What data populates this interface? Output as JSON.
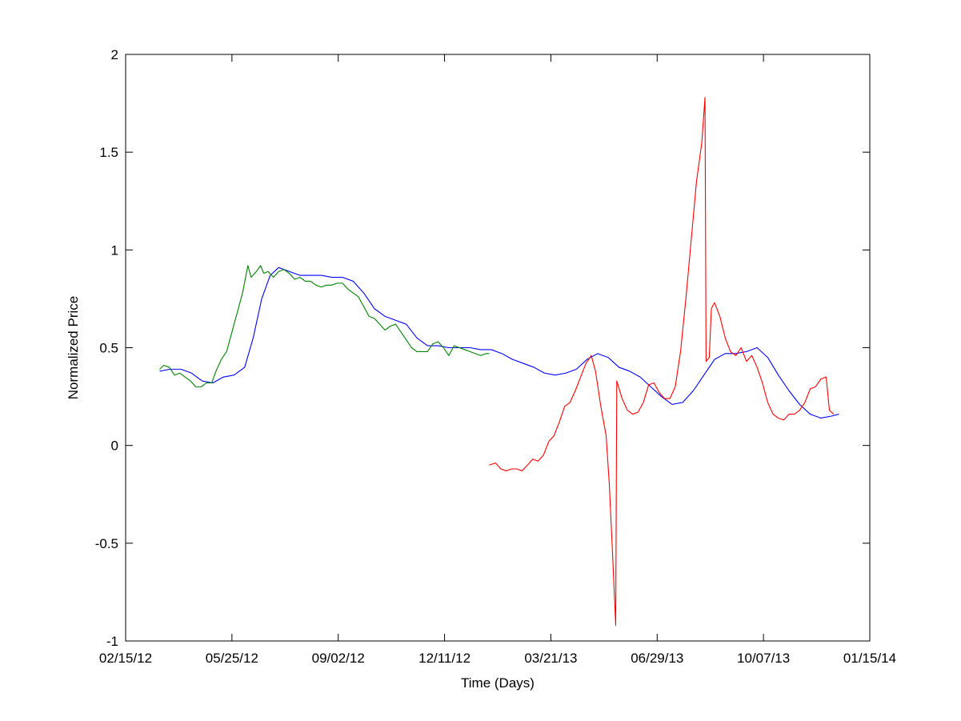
{
  "chart_data": {
    "type": "line",
    "title": "",
    "xlabel": "Time (Days)",
    "ylabel": "Normalized Price",
    "xlim": [
      "2012-02-15",
      "2014-01-15"
    ],
    "ylim": [
      -1,
      2
    ],
    "grid": false,
    "x_ticks": [
      {
        "date": "2012-02-15",
        "label": "02/15/12"
      },
      {
        "date": "2012-05-25",
        "label": "05/25/12"
      },
      {
        "date": "2012-09-02",
        "label": "09/02/12"
      },
      {
        "date": "2012-12-11",
        "label": "12/11/12"
      },
      {
        "date": "2013-03-21",
        "label": "03/21/13"
      },
      {
        "date": "2013-06-29",
        "label": "06/29/13"
      },
      {
        "date": "2013-10-07",
        "label": "10/07/13"
      },
      {
        "date": "2014-01-15",
        "label": "01/15/14"
      }
    ],
    "y_ticks": [
      {
        "value": -1,
        "label": "-1"
      },
      {
        "value": -0.5,
        "label": "-0.5"
      },
      {
        "value": 0,
        "label": "0"
      },
      {
        "value": 0.5,
        "label": "0.5"
      },
      {
        "value": 1,
        "label": "1"
      },
      {
        "value": 1.5,
        "label": "1.5"
      },
      {
        "value": 2,
        "label": "2"
      }
    ],
    "series": [
      {
        "color": "#0000ff",
        "points": [
          [
            "2012-03-18",
            0.38
          ],
          [
            "2012-03-28",
            0.39
          ],
          [
            "2012-04-07",
            0.39
          ],
          [
            "2012-04-17",
            0.37
          ],
          [
            "2012-04-27",
            0.33
          ],
          [
            "2012-05-07",
            0.32
          ],
          [
            "2012-05-17",
            0.35
          ],
          [
            "2012-05-27",
            0.36
          ],
          [
            "2012-06-06",
            0.4
          ],
          [
            "2012-06-14",
            0.55
          ],
          [
            "2012-06-22",
            0.75
          ],
          [
            "2012-06-30",
            0.87
          ],
          [
            "2012-07-08",
            0.91
          ],
          [
            "2012-07-18",
            0.89
          ],
          [
            "2012-07-28",
            0.87
          ],
          [
            "2012-08-07",
            0.87
          ],
          [
            "2012-08-17",
            0.87
          ],
          [
            "2012-08-27",
            0.86
          ],
          [
            "2012-09-06",
            0.86
          ],
          [
            "2012-09-16",
            0.84
          ],
          [
            "2012-09-26",
            0.78
          ],
          [
            "2012-10-06",
            0.7
          ],
          [
            "2012-10-16",
            0.66
          ],
          [
            "2012-10-26",
            0.64
          ],
          [
            "2012-11-05",
            0.62
          ],
          [
            "2012-11-15",
            0.55
          ],
          [
            "2012-11-25",
            0.51
          ],
          [
            "2012-12-05",
            0.51
          ],
          [
            "2012-12-15",
            0.5
          ],
          [
            "2012-12-25",
            0.5
          ],
          [
            "2013-01-04",
            0.5
          ],
          [
            "2013-01-14",
            0.49
          ],
          [
            "2013-01-24",
            0.49
          ],
          [
            "2013-02-03",
            0.47
          ],
          [
            "2013-02-13",
            0.44
          ],
          [
            "2013-02-23",
            0.42
          ],
          [
            "2013-03-05",
            0.4
          ],
          [
            "2013-03-15",
            0.37
          ],
          [
            "2013-03-25",
            0.36
          ],
          [
            "2013-04-04",
            0.37
          ],
          [
            "2013-04-14",
            0.39
          ],
          [
            "2013-04-24",
            0.44
          ],
          [
            "2013-05-04",
            0.47
          ],
          [
            "2013-05-14",
            0.45
          ],
          [
            "2013-05-24",
            0.4
          ],
          [
            "2013-06-03",
            0.38
          ],
          [
            "2013-06-13",
            0.35
          ],
          [
            "2013-06-23",
            0.3
          ],
          [
            "2013-07-03",
            0.25
          ],
          [
            "2013-07-13",
            0.21
          ],
          [
            "2013-07-23",
            0.22
          ],
          [
            "2013-08-02",
            0.28
          ],
          [
            "2013-08-12",
            0.36
          ],
          [
            "2013-08-22",
            0.44
          ],
          [
            "2013-09-01",
            0.47
          ],
          [
            "2013-09-11",
            0.47
          ],
          [
            "2013-09-21",
            0.48
          ],
          [
            "2013-10-01",
            0.5
          ],
          [
            "2013-10-11",
            0.45
          ],
          [
            "2013-10-21",
            0.36
          ],
          [
            "2013-10-31",
            0.28
          ],
          [
            "2013-11-10",
            0.21
          ],
          [
            "2013-11-20",
            0.16
          ],
          [
            "2013-11-30",
            0.14
          ],
          [
            "2013-12-10",
            0.15
          ],
          [
            "2013-12-17",
            0.16
          ]
        ]
      },
      {
        "color": "#008000",
        "points": [
          [
            "2012-03-18",
            0.39
          ],
          [
            "2012-03-22",
            0.41
          ],
          [
            "2012-03-27",
            0.4
          ],
          [
            "2012-04-01",
            0.36
          ],
          [
            "2012-04-06",
            0.37
          ],
          [
            "2012-04-11",
            0.35
          ],
          [
            "2012-04-16",
            0.33
          ],
          [
            "2012-04-21",
            0.3
          ],
          [
            "2012-04-26",
            0.3
          ],
          [
            "2012-05-01",
            0.32
          ],
          [
            "2012-05-06",
            0.32
          ],
          [
            "2012-05-10",
            0.38
          ],
          [
            "2012-05-15",
            0.44
          ],
          [
            "2012-05-20",
            0.48
          ],
          [
            "2012-05-25",
            0.58
          ],
          [
            "2012-05-30",
            0.68
          ],
          [
            "2012-06-04",
            0.78
          ],
          [
            "2012-06-09",
            0.92
          ],
          [
            "2012-06-12",
            0.86
          ],
          [
            "2012-06-17",
            0.89
          ],
          [
            "2012-06-21",
            0.92
          ],
          [
            "2012-06-24",
            0.88
          ],
          [
            "2012-06-28",
            0.89
          ],
          [
            "2012-07-03",
            0.86
          ],
          [
            "2012-07-08",
            0.89
          ],
          [
            "2012-07-13",
            0.9
          ],
          [
            "2012-07-18",
            0.88
          ],
          [
            "2012-07-23",
            0.85
          ],
          [
            "2012-07-28",
            0.86
          ],
          [
            "2012-08-02",
            0.84
          ],
          [
            "2012-08-07",
            0.84
          ],
          [
            "2012-08-12",
            0.82
          ],
          [
            "2012-08-17",
            0.81
          ],
          [
            "2012-08-22",
            0.82
          ],
          [
            "2012-08-27",
            0.82
          ],
          [
            "2012-09-01",
            0.83
          ],
          [
            "2012-09-06",
            0.83
          ],
          [
            "2012-09-11",
            0.8
          ],
          [
            "2012-09-16",
            0.78
          ],
          [
            "2012-09-21",
            0.76
          ],
          [
            "2012-09-26",
            0.71
          ],
          [
            "2012-10-01",
            0.66
          ],
          [
            "2012-10-06",
            0.65
          ],
          [
            "2012-10-11",
            0.62
          ],
          [
            "2012-10-16",
            0.59
          ],
          [
            "2012-10-21",
            0.61
          ],
          [
            "2012-10-26",
            0.62
          ],
          [
            "2012-10-31",
            0.58
          ],
          [
            "2012-11-05",
            0.54
          ],
          [
            "2012-11-10",
            0.5
          ],
          [
            "2012-11-15",
            0.48
          ],
          [
            "2012-11-20",
            0.48
          ],
          [
            "2012-11-25",
            0.48
          ],
          [
            "2012-11-30",
            0.52
          ],
          [
            "2012-12-05",
            0.53
          ],
          [
            "2012-12-10",
            0.5
          ],
          [
            "2012-12-15",
            0.46
          ],
          [
            "2012-12-20",
            0.51
          ],
          [
            "2012-12-25",
            0.5
          ],
          [
            "2012-12-30",
            0.49
          ],
          [
            "2013-01-04",
            0.48
          ],
          [
            "2013-01-09",
            0.47
          ],
          [
            "2013-01-14",
            0.46
          ],
          [
            "2013-01-19",
            0.47
          ],
          [
            "2013-01-22",
            0.47
          ]
        ]
      },
      {
        "color": "#ff0000",
        "points": [
          [
            "2013-01-22",
            -0.1
          ],
          [
            "2013-01-28",
            -0.09
          ],
          [
            "2013-02-02",
            -0.12
          ],
          [
            "2013-02-07",
            -0.13
          ],
          [
            "2013-02-12",
            -0.12
          ],
          [
            "2013-02-17",
            -0.12
          ],
          [
            "2013-02-22",
            -0.13
          ],
          [
            "2013-02-27",
            -0.1
          ],
          [
            "2013-03-04",
            -0.07
          ],
          [
            "2013-03-09",
            -0.08
          ],
          [
            "2013-03-14",
            -0.05
          ],
          [
            "2013-03-19",
            0.02
          ],
          [
            "2013-03-24",
            0.05
          ],
          [
            "2013-03-29",
            0.12
          ],
          [
            "2013-04-03",
            0.2
          ],
          [
            "2013-04-08",
            0.22
          ],
          [
            "2013-04-13",
            0.28
          ],
          [
            "2013-04-18",
            0.35
          ],
          [
            "2013-04-23",
            0.42
          ],
          [
            "2013-04-28",
            0.46
          ],
          [
            "2013-05-02",
            0.38
          ],
          [
            "2013-05-07",
            0.2
          ],
          [
            "2013-05-12",
            0.05
          ],
          [
            "2013-05-15",
            -0.2
          ],
          [
            "2013-05-18",
            -0.55
          ],
          [
            "2013-05-21",
            -0.92
          ],
          [
            "2013-05-22",
            0.33
          ],
          [
            "2013-05-27",
            0.24
          ],
          [
            "2013-06-01",
            0.18
          ],
          [
            "2013-06-06",
            0.16
          ],
          [
            "2013-06-11",
            0.17
          ],
          [
            "2013-06-16",
            0.22
          ],
          [
            "2013-06-21",
            0.31
          ],
          [
            "2013-06-26",
            0.32
          ],
          [
            "2013-07-01",
            0.27
          ],
          [
            "2013-07-06",
            0.24
          ],
          [
            "2013-07-11",
            0.24
          ],
          [
            "2013-07-16",
            0.3
          ],
          [
            "2013-07-21",
            0.48
          ],
          [
            "2013-07-26",
            0.75
          ],
          [
            "2013-07-31",
            1.05
          ],
          [
            "2013-08-05",
            1.35
          ],
          [
            "2013-08-10",
            1.55
          ],
          [
            "2013-08-13",
            1.78
          ],
          [
            "2013-08-14",
            0.43
          ],
          [
            "2013-08-17",
            0.45
          ],
          [
            "2013-08-19",
            0.7
          ],
          [
            "2013-08-22",
            0.73
          ],
          [
            "2013-08-27",
            0.66
          ],
          [
            "2013-09-01",
            0.55
          ],
          [
            "2013-09-06",
            0.48
          ],
          [
            "2013-09-11",
            0.46
          ],
          [
            "2013-09-16",
            0.5
          ],
          [
            "2013-09-21",
            0.43
          ],
          [
            "2013-09-26",
            0.46
          ],
          [
            "2013-10-01",
            0.4
          ],
          [
            "2013-10-06",
            0.32
          ],
          [
            "2013-10-11",
            0.22
          ],
          [
            "2013-10-16",
            0.16
          ],
          [
            "2013-10-21",
            0.14
          ],
          [
            "2013-10-26",
            0.13
          ],
          [
            "2013-10-31",
            0.16
          ],
          [
            "2013-11-05",
            0.16
          ],
          [
            "2013-11-10",
            0.18
          ],
          [
            "2013-11-15",
            0.22
          ],
          [
            "2013-11-20",
            0.29
          ],
          [
            "2013-11-25",
            0.3
          ],
          [
            "2013-11-30",
            0.34
          ],
          [
            "2013-12-05",
            0.35
          ],
          [
            "2013-12-08",
            0.18
          ],
          [
            "2013-12-12",
            0.16
          ]
        ]
      }
    ]
  }
}
